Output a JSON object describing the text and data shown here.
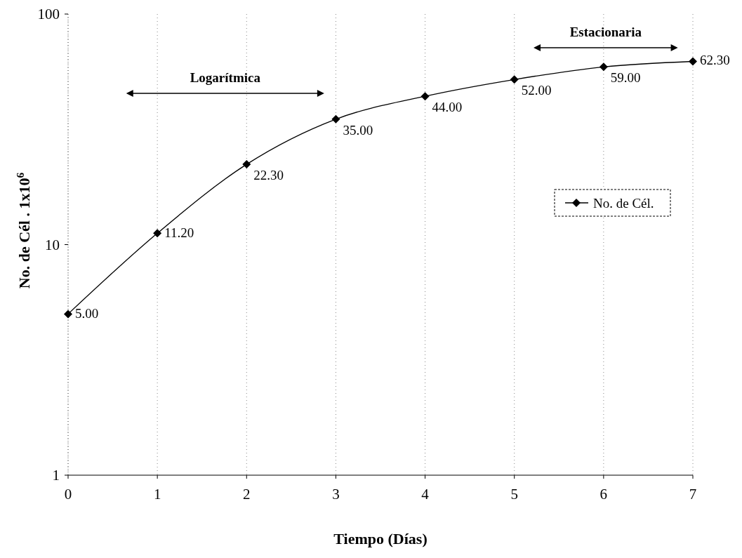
{
  "chart_data": {
    "type": "line",
    "xlabel": "Tiempo (Días)",
    "ylabel": "No. de Cél . 1x10$^{6}$",
    "x": [
      0,
      1,
      2,
      3,
      4,
      5,
      6,
      7
    ],
    "series": [
      {
        "name": "No. de Cél.",
        "color": "#000000",
        "values": [
          5,
          11.2,
          22.3,
          35,
          44,
          52,
          59,
          62.3
        ],
        "value_labels": [
          "5.00",
          "11.20",
          "22.30",
          "35.00",
          "44.00",
          "52.00",
          "59.00",
          "62.30"
        ]
      }
    ],
    "log": "y",
    "xlim": [
      0,
      7
    ],
    "ylim": [
      1,
      100
    ],
    "xticks": [
      0,
      1,
      2,
      3,
      4,
      5,
      6,
      7
    ],
    "yticks": [
      1,
      10,
      100
    ],
    "grid": "x",
    "legend": "right",
    "marker": "diamond",
    "line_style": "solid",
    "annotations": [
      "Logarítmica",
      "Estacionaria"
    ]
  }
}
